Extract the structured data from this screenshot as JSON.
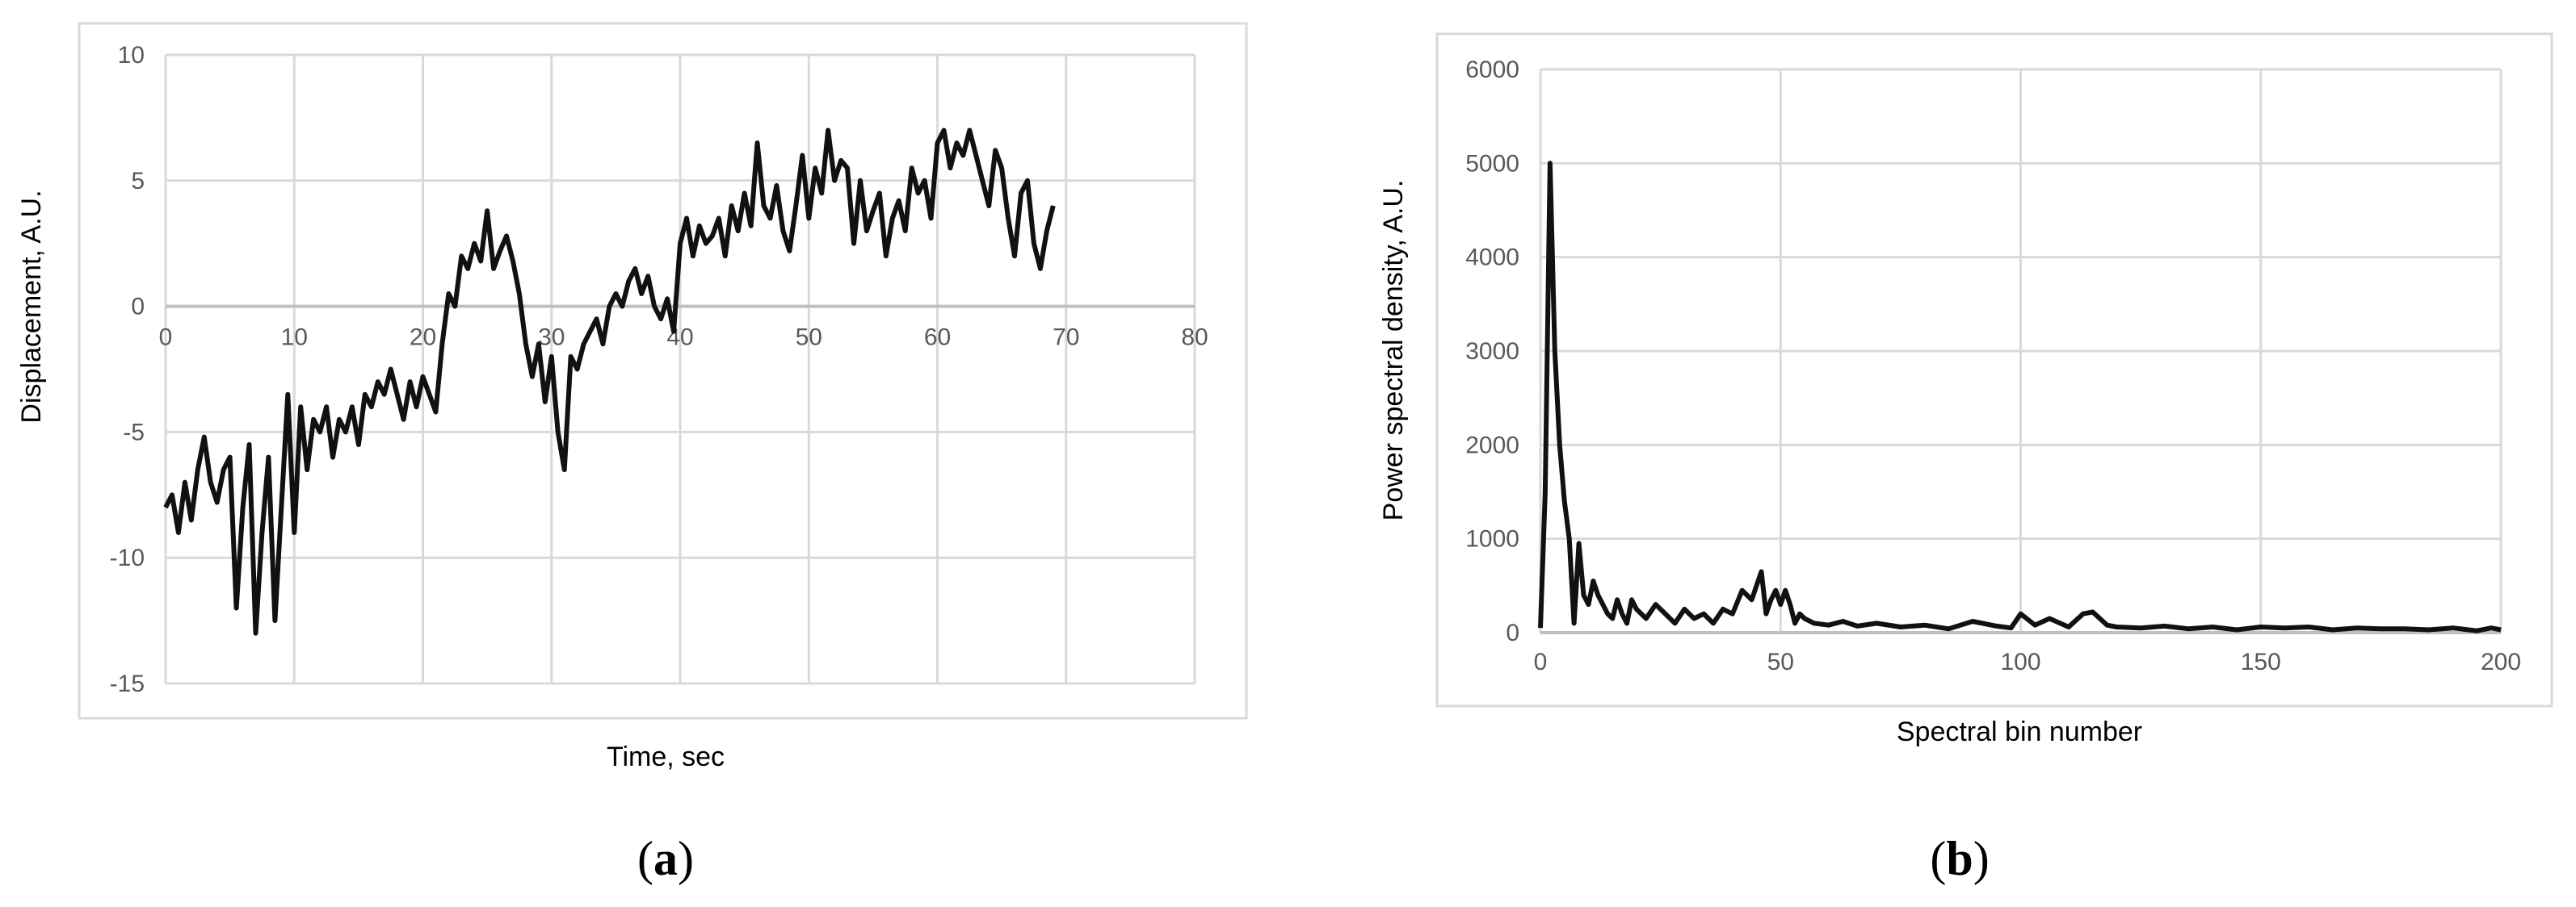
{
  "chart_data": [
    {
      "type": "line",
      "title": "",
      "xlabel": "Time, sec",
      "ylabel": "Displacement, A.U.",
      "xlim": [
        0,
        80
      ],
      "ylim": [
        -15,
        10
      ],
      "xticks": [
        "0",
        "10",
        "20",
        "30",
        "40",
        "50",
        "60",
        "70",
        "80"
      ],
      "yticks": [
        "-15",
        "-10",
        "-5",
        "0",
        "5",
        "10"
      ],
      "grid": true,
      "legend": "none",
      "panel_label": "a",
      "series": [
        {
          "color": "#111111",
          "x": [
            0,
            0.5,
            1,
            1.5,
            2,
            2.5,
            3,
            3.5,
            4,
            4.5,
            5,
            5.5,
            6,
            6.5,
            7,
            7.5,
            8,
            8.5,
            9,
            9.5,
            10,
            10.5,
            11,
            11.5,
            12,
            12.5,
            13,
            13.5,
            14,
            14.5,
            15,
            15.5,
            16,
            16.5,
            17,
            17.5,
            18,
            18.5,
            19,
            19.5,
            20,
            20.5,
            21,
            21.5,
            22,
            22.5,
            23,
            23.5,
            24,
            24.5,
            25,
            25.5,
            26,
            26.5,
            27,
            27.5,
            28,
            28.5,
            29,
            29.5,
            30,
            30.5,
            31,
            31.5,
            32,
            32.5,
            33,
            33.5,
            34,
            34.5,
            35,
            35.5,
            36,
            36.5,
            37,
            37.5,
            38,
            38.5,
            39,
            39.5,
            40,
            40.5,
            41,
            41.5,
            42,
            42.5,
            43,
            43.5,
            44,
            44.5,
            45,
            45.5,
            46,
            46.5,
            47,
            47.5,
            48,
            48.5,
            49,
            49.5,
            50,
            50.5,
            51,
            51.5,
            52,
            52.5,
            53,
            53.5,
            54,
            54.5,
            55,
            55.5,
            56,
            56.5,
            57,
            57.5,
            58,
            58.5,
            59,
            59.5,
            60,
            60.5,
            61,
            61.5,
            62,
            62.5,
            63,
            63.5,
            64,
            64.5,
            65,
            65.5,
            66,
            66.5,
            67,
            67.5,
            68,
            68.5,
            69
          ],
          "y": [
            -8,
            -7.5,
            -9,
            -7,
            -8.5,
            -6.5,
            -5.2,
            -7,
            -7.8,
            -6.5,
            -6,
            -12,
            -8,
            -5.5,
            -13,
            -9,
            -6,
            -12.5,
            -8,
            -3.5,
            -9,
            -4,
            -6.5,
            -4.5,
            -5,
            -4,
            -6,
            -4.5,
            -5,
            -4,
            -5.5,
            -3.5,
            -4,
            -3,
            -3.5,
            -2.5,
            -3.5,
            -4.5,
            -3,
            -4,
            -2.8,
            -3.5,
            -4.2,
            -1.5,
            0.5,
            0,
            2,
            1.5,
            2.5,
            1.8,
            3.8,
            1.5,
            2.2,
            2.8,
            1.8,
            0.5,
            -1.5,
            -2.8,
            -1.5,
            -3.8,
            -2,
            -5,
            -6.5,
            -2,
            -2.5,
            -1.5,
            -1,
            -0.5,
            -1.5,
            0,
            0.5,
            0,
            1,
            1.5,
            0.5,
            1.2,
            0,
            -0.5,
            0.3,
            -1,
            2.5,
            3.5,
            2,
            3.2,
            2.5,
            2.8,
            3.5,
            2,
            4,
            3,
            4.5,
            3.2,
            6.5,
            4,
            3.5,
            4.8,
            3,
            2.2,
            4,
            6,
            3.5,
            5.5,
            4.5,
            7,
            5,
            5.8,
            5.5,
            2.5,
            5,
            3,
            3.8,
            4.5,
            2,
            3.5,
            4.2,
            3,
            5.5,
            4.5,
            5,
            3.5,
            6.5,
            7,
            5.5,
            6.5,
            6,
            7,
            6,
            5,
            4,
            6.2,
            5.5,
            3.5,
            2,
            4.5,
            5,
            2.5,
            1.5,
            3,
            4
          ]
        }
      ]
    },
    {
      "type": "line",
      "title": "",
      "xlabel": "Spectral bin number",
      "ylabel": "Power spectral density, A.U.",
      "xlim": [
        0,
        200
      ],
      "ylim": [
        0,
        6000
      ],
      "xticks": [
        "0",
        "50",
        "100",
        "150",
        "200"
      ],
      "yticks": [
        "0",
        "1000",
        "2000",
        "3000",
        "4000",
        "5000",
        "6000"
      ],
      "grid": true,
      "legend": "none",
      "panel_label": "b",
      "series": [
        {
          "color": "#111111",
          "x": [
            0,
            1,
            2,
            3,
            4,
            5,
            6,
            7,
            8,
            9,
            10,
            11,
            12,
            13,
            14,
            15,
            16,
            17,
            18,
            19,
            20,
            22,
            24,
            26,
            28,
            30,
            32,
            34,
            36,
            38,
            40,
            42,
            44,
            45,
            46,
            47,
            48,
            49,
            50,
            51,
            52,
            53,
            54,
            55,
            57,
            60,
            63,
            66,
            70,
            75,
            80,
            85,
            90,
            95,
            98,
            100,
            103,
            106,
            110,
            113,
            115,
            118,
            120,
            125,
            130,
            135,
            140,
            145,
            150,
            155,
            160,
            165,
            170,
            175,
            180,
            185,
            190,
            195,
            198,
            200
          ],
          "y": [
            50,
            1500,
            5000,
            3000,
            2000,
            1400,
            1000,
            100,
            950,
            400,
            300,
            550,
            400,
            300,
            200,
            150,
            350,
            200,
            100,
            350,
            250,
            150,
            300,
            200,
            100,
            250,
            150,
            200,
            100,
            250,
            200,
            450,
            350,
            500,
            650,
            200,
            350,
            450,
            300,
            450,
            300,
            100,
            200,
            150,
            100,
            80,
            120,
            70,
            100,
            60,
            80,
            40,
            120,
            70,
            50,
            200,
            80,
            150,
            60,
            200,
            220,
            80,
            60,
            50,
            70,
            40,
            60,
            30,
            60,
            50,
            60,
            30,
            50,
            40,
            40,
            30,
            50,
            20,
            50,
            30
          ]
        }
      ]
    }
  ]
}
